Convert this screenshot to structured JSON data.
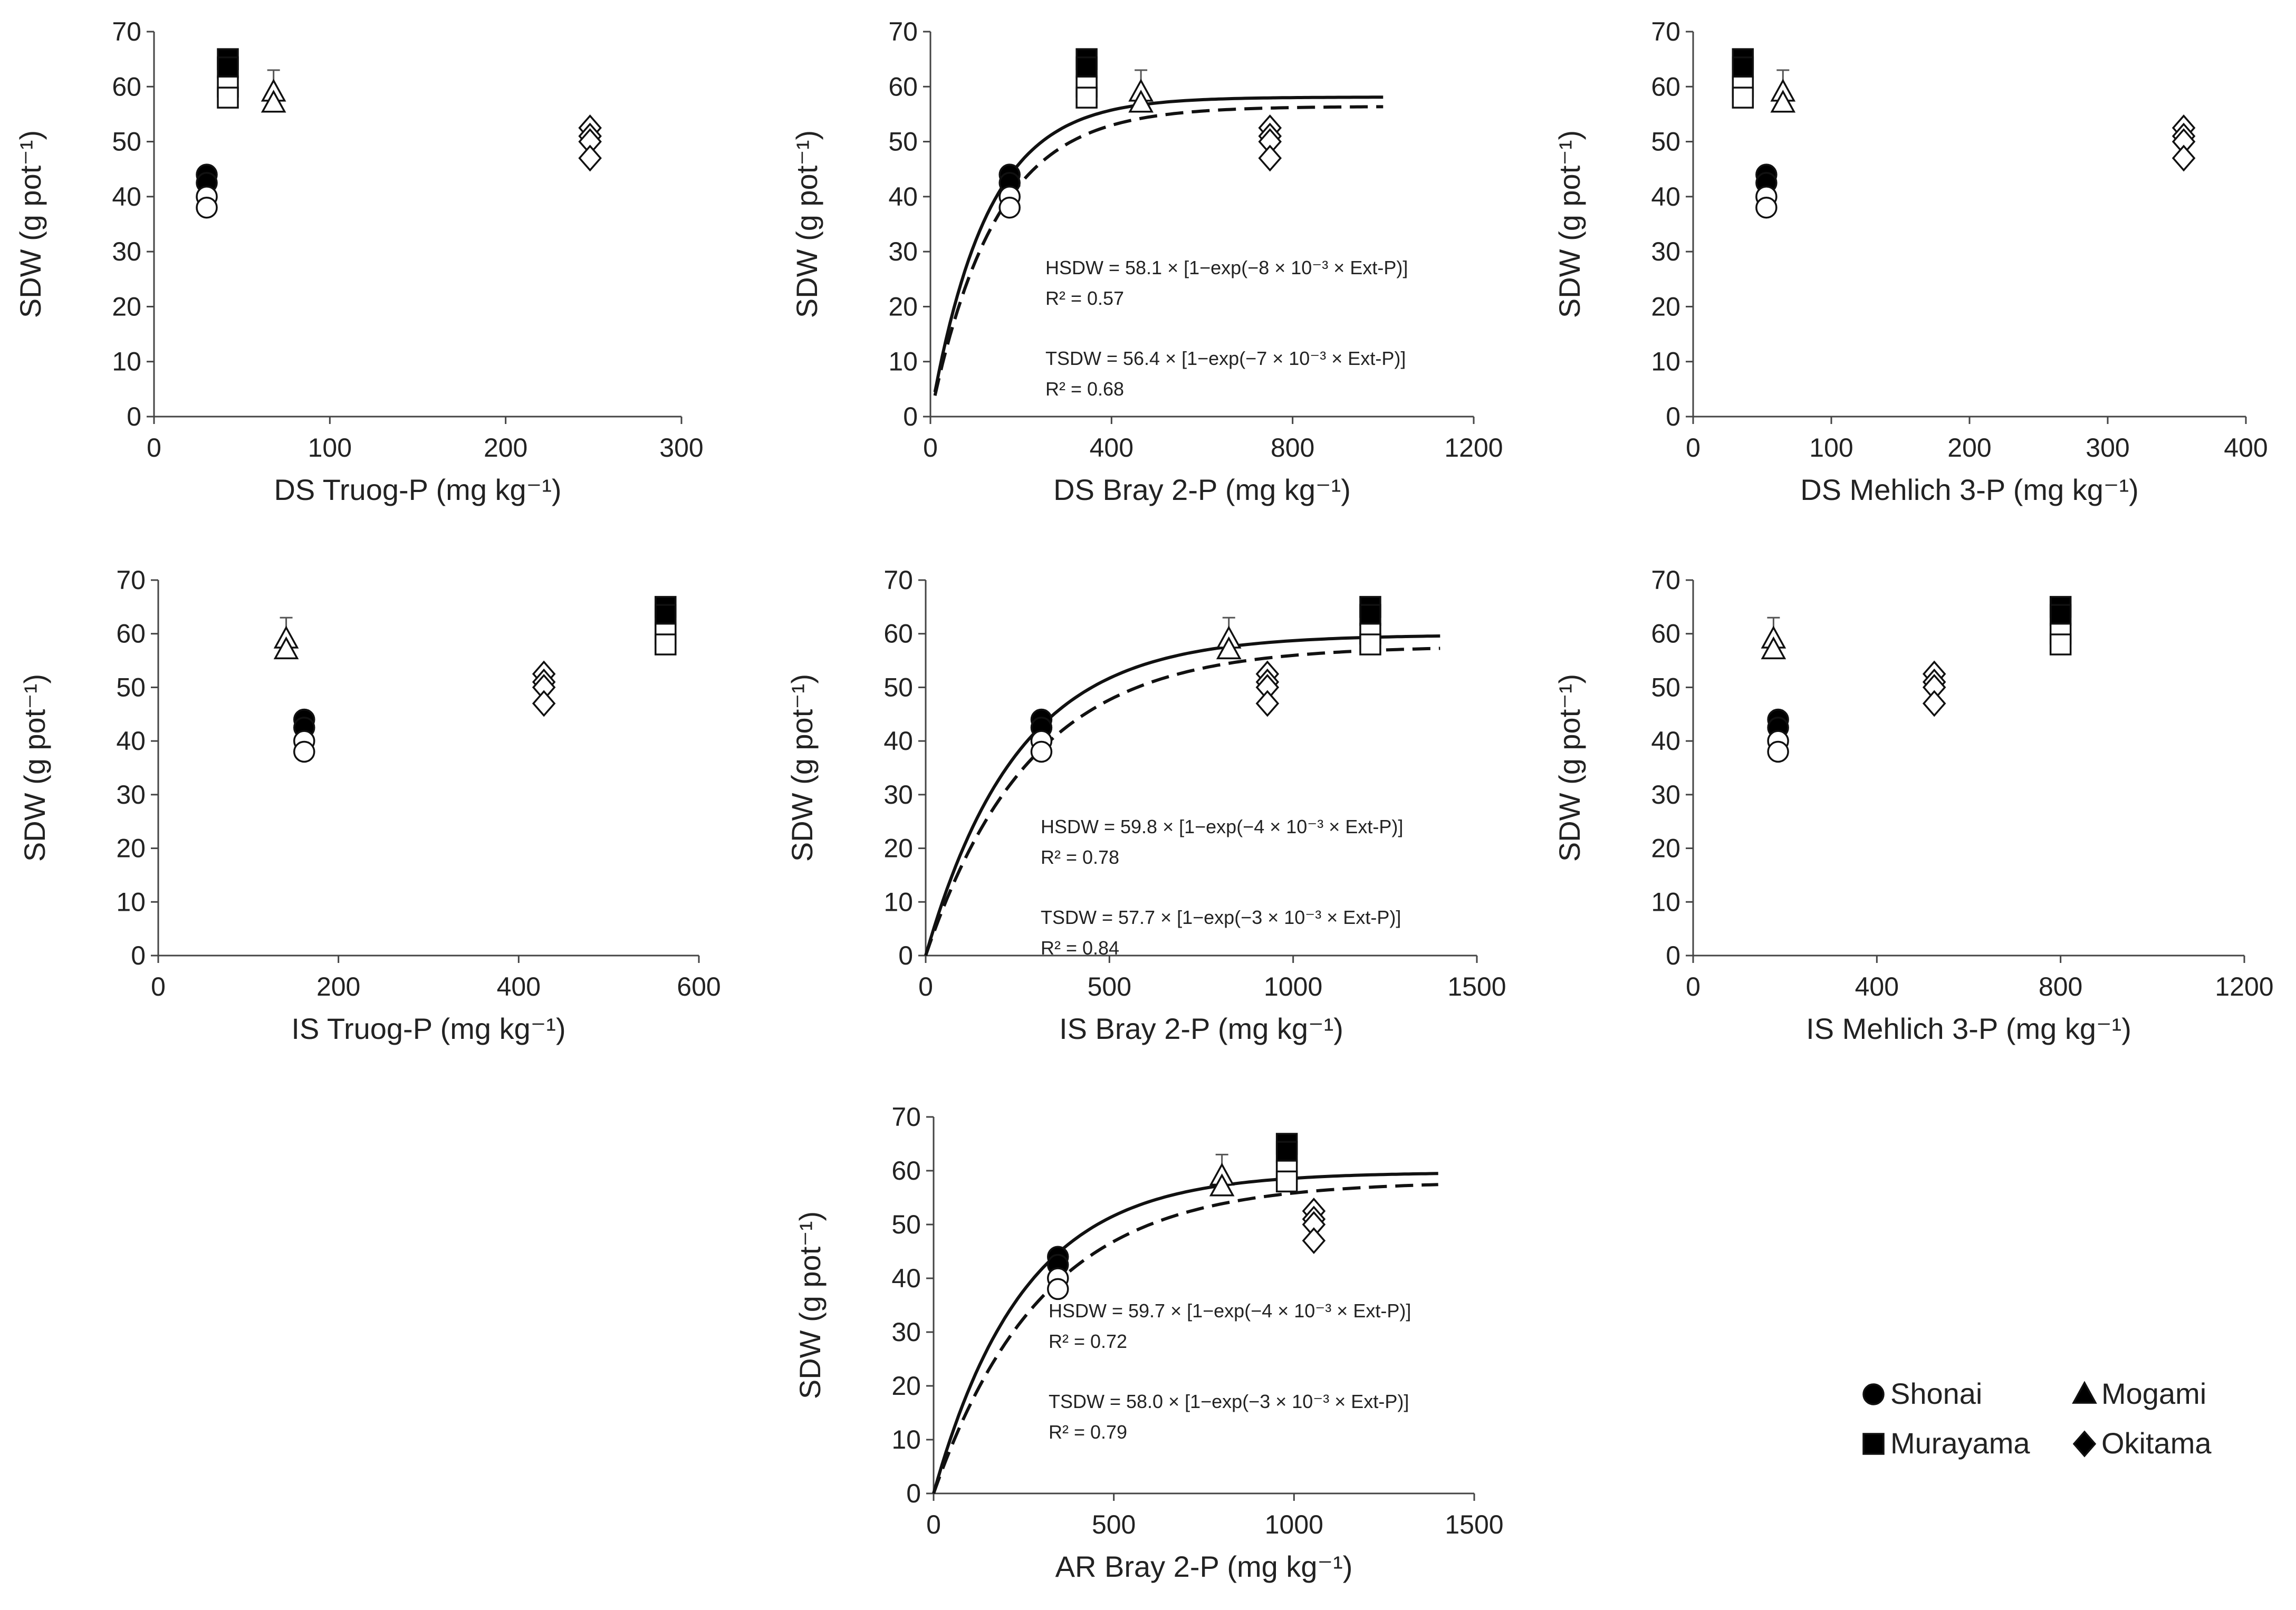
{
  "legend": [
    {
      "name": "Shonai",
      "marker": "circle"
    },
    {
      "name": "Mogami",
      "marker": "triangle"
    },
    {
      "name": "Murayama",
      "marker": "square"
    },
    {
      "name": "Okitama",
      "marker": "diamond"
    }
  ],
  "chart_data": [
    {
      "type": "scatter",
      "xlabel": "DS Truog-P (mg kg⁻¹)",
      "ylabel": "SDW (g pot⁻¹)",
      "xlim": [
        0,
        300
      ],
      "xticks": [
        0,
        100,
        200,
        300
      ],
      "ylim": [
        0,
        70
      ],
      "yticks": [
        0,
        10,
        20,
        30,
        40,
        50,
        60,
        70
      ],
      "series": [
        {
          "name": "Shonai",
          "marker": "circle",
          "points": [
            {
              "x": 30,
              "y": 44,
              "filled": true
            },
            {
              "x": 30,
              "y": 42.5,
              "filled": true
            },
            {
              "x": 30,
              "y": 40,
              "filled": false
            },
            {
              "x": 30,
              "y": 38,
              "filled": false
            }
          ]
        },
        {
          "name": "Murayama",
          "marker": "square",
          "points": [
            {
              "x": 42,
              "y": 65,
              "filled": true
            },
            {
              "x": 42,
              "y": 63.5,
              "filled": true
            },
            {
              "x": 42,
              "y": 60,
              "filled": false
            },
            {
              "x": 42,
              "y": 58,
              "filled": false
            }
          ]
        },
        {
          "name": "Mogami",
          "marker": "triangle",
          "points": [
            {
              "x": 68,
              "y": 59,
              "filled": false,
              "err": 4
            },
            {
              "x": 68,
              "y": 57,
              "filled": false
            }
          ]
        },
        {
          "name": "Okitama",
          "marker": "diamond",
          "points": [
            {
              "x": 248,
              "y": 52.5,
              "filled": false
            },
            {
              "x": 248,
              "y": 51,
              "filled": false
            },
            {
              "x": 248,
              "y": 50,
              "filled": false
            },
            {
              "x": 248,
              "y": 47,
              "filled": false
            }
          ]
        }
      ]
    },
    {
      "type": "scatter",
      "xlabel": "DS Bray 2-P (mg kg⁻¹)",
      "ylabel": "SDW (g pot⁻¹)",
      "xlim": [
        0,
        1200
      ],
      "xticks": [
        0,
        400,
        800,
        1200
      ],
      "ylim": [
        0,
        70
      ],
      "yticks": [
        0,
        10,
        20,
        30,
        40,
        50,
        60,
        70
      ],
      "series": [
        {
          "name": "Shonai",
          "marker": "circle",
          "points": [
            {
              "x": 175,
              "y": 44,
              "filled": true
            },
            {
              "x": 175,
              "y": 42.5,
              "filled": true
            },
            {
              "x": 175,
              "y": 40,
              "filled": false
            },
            {
              "x": 175,
              "y": 38,
              "filled": false
            }
          ]
        },
        {
          "name": "Murayama",
          "marker": "square",
          "points": [
            {
              "x": 345,
              "y": 65,
              "filled": true
            },
            {
              "x": 345,
              "y": 63.5,
              "filled": true
            },
            {
              "x": 345,
              "y": 60,
              "filled": false
            },
            {
              "x": 345,
              "y": 58,
              "filled": false
            }
          ]
        },
        {
          "name": "Mogami",
          "marker": "triangle",
          "points": [
            {
              "x": 465,
              "y": 59,
              "filled": false,
              "err": 4
            },
            {
              "x": 465,
              "y": 57,
              "filled": false
            }
          ]
        },
        {
          "name": "Okitama",
          "marker": "diamond",
          "points": [
            {
              "x": 750,
              "y": 52.5,
              "filled": false
            },
            {
              "x": 750,
              "y": 51,
              "filled": false
            },
            {
              "x": 750,
              "y": 50,
              "filled": false
            },
            {
              "x": 750,
              "y": 47,
              "filled": false
            }
          ]
        }
      ],
      "fits": [
        {
          "a": 58.1,
          "k": 0.008,
          "x0": 10,
          "x1": 1000,
          "style": "solid"
        },
        {
          "a": 56.4,
          "k": 0.007,
          "x0": 10,
          "x1": 1000,
          "style": "dashed"
        }
      ],
      "equations": [
        "HSDW = 58.1 × [1−exp(−8 × 10⁻³ × Ext-P)]",
        "R² = 0.57",
        "TSDW = 56.4 × [1−exp(−7 × 10⁻³ × Ext-P)]",
        "R² = 0.68"
      ]
    },
    {
      "type": "scatter",
      "xlabel": "DS Mehlich 3-P (mg kg⁻¹)",
      "ylabel": "SDW (g pot⁻¹)",
      "xlim": [
        0,
        400
      ],
      "xticks": [
        0,
        100,
        200,
        300,
        400
      ],
      "ylim": [
        0,
        70
      ],
      "yticks": [
        0,
        10,
        20,
        30,
        40,
        50,
        60,
        70
      ],
      "series": [
        {
          "name": "Murayama",
          "marker": "square",
          "points": [
            {
              "x": 36,
              "y": 65,
              "filled": true
            },
            {
              "x": 36,
              "y": 63.5,
              "filled": true
            },
            {
              "x": 36,
              "y": 60,
              "filled": false
            },
            {
              "x": 36,
              "y": 58,
              "filled": false
            }
          ]
        },
        {
          "name": "Shonai",
          "marker": "circle",
          "points": [
            {
              "x": 53,
              "y": 44,
              "filled": true
            },
            {
              "x": 53,
              "y": 42.5,
              "filled": true
            },
            {
              "x": 53,
              "y": 40,
              "filled": false
            },
            {
              "x": 53,
              "y": 38,
              "filled": false
            }
          ]
        },
        {
          "name": "Mogami",
          "marker": "triangle",
          "points": [
            {
              "x": 65,
              "y": 59,
              "filled": false,
              "err": 4
            },
            {
              "x": 65,
              "y": 57,
              "filled": false
            }
          ]
        },
        {
          "name": "Okitama",
          "marker": "diamond",
          "points": [
            {
              "x": 355,
              "y": 52.5,
              "filled": false
            },
            {
              "x": 355,
              "y": 51,
              "filled": false
            },
            {
              "x": 355,
              "y": 50,
              "filled": false
            },
            {
              "x": 355,
              "y": 47,
              "filled": false
            }
          ]
        }
      ]
    },
    {
      "type": "scatter",
      "xlabel": "IS Truog-P (mg kg⁻¹)",
      "ylabel": "SDW (g pot⁻¹)",
      "xlim": [
        0,
        600
      ],
      "xticks": [
        0,
        200,
        400,
        600
      ],
      "ylim": [
        0,
        70
      ],
      "yticks": [
        0,
        10,
        20,
        30,
        40,
        50,
        60,
        70
      ],
      "series": [
        {
          "name": "Mogami",
          "marker": "triangle",
          "points": [
            {
              "x": 142,
              "y": 59,
              "filled": false,
              "err": 4
            },
            {
              "x": 142,
              "y": 57,
              "filled": false
            }
          ]
        },
        {
          "name": "Shonai",
          "marker": "circle",
          "points": [
            {
              "x": 162,
              "y": 44,
              "filled": true
            },
            {
              "x": 162,
              "y": 42.5,
              "filled": true
            },
            {
              "x": 162,
              "y": 40,
              "filled": false
            },
            {
              "x": 162,
              "y": 38,
              "filled": false
            }
          ]
        },
        {
          "name": "Okitama",
          "marker": "diamond",
          "points": [
            {
              "x": 428,
              "y": 52.5,
              "filled": false
            },
            {
              "x": 428,
              "y": 51,
              "filled": false
            },
            {
              "x": 428,
              "y": 50,
              "filled": false
            },
            {
              "x": 428,
              "y": 47,
              "filled": false
            }
          ]
        },
        {
          "name": "Murayama",
          "marker": "square",
          "points": [
            {
              "x": 563,
              "y": 65,
              "filled": true
            },
            {
              "x": 563,
              "y": 63.5,
              "filled": true
            },
            {
              "x": 563,
              "y": 60,
              "filled": false
            },
            {
              "x": 563,
              "y": 58,
              "filled": false
            }
          ]
        }
      ]
    },
    {
      "type": "scatter",
      "xlabel": "IS Bray 2-P (mg kg⁻¹)",
      "ylabel": "SDW (g pot⁻¹)",
      "xlim": [
        0,
        1500
      ],
      "xticks": [
        0,
        500,
        1000,
        1500
      ],
      "ylim": [
        0,
        70
      ],
      "yticks": [
        0,
        10,
        20,
        30,
        40,
        50,
        60,
        70
      ],
      "series": [
        {
          "name": "Shonai",
          "marker": "circle",
          "points": [
            {
              "x": 315,
              "y": 44,
              "filled": true
            },
            {
              "x": 315,
              "y": 42.5,
              "filled": true
            },
            {
              "x": 315,
              "y": 40,
              "filled": false
            },
            {
              "x": 315,
              "y": 38,
              "filled": false
            }
          ]
        },
        {
          "name": "Mogami",
          "marker": "triangle",
          "points": [
            {
              "x": 825,
              "y": 59,
              "filled": false,
              "err": 4
            },
            {
              "x": 825,
              "y": 57,
              "filled": false
            }
          ]
        },
        {
          "name": "Okitama",
          "marker": "diamond",
          "points": [
            {
              "x": 930,
              "y": 52.5,
              "filled": false
            },
            {
              "x": 930,
              "y": 51,
              "filled": false
            },
            {
              "x": 930,
              "y": 50,
              "filled": false
            },
            {
              "x": 930,
              "y": 47,
              "filled": false
            }
          ]
        },
        {
          "name": "Murayama",
          "marker": "square",
          "points": [
            {
              "x": 1210,
              "y": 65,
              "filled": true
            },
            {
              "x": 1210,
              "y": 63.5,
              "filled": true
            },
            {
              "x": 1210,
              "y": 60,
              "filled": false
            },
            {
              "x": 1210,
              "y": 58,
              "filled": false
            }
          ]
        }
      ],
      "fits": [
        {
          "a": 59.8,
          "k": 0.004,
          "x0": 0,
          "x1": 1400,
          "style": "solid"
        },
        {
          "a": 57.7,
          "k": 0.0035,
          "x0": 0,
          "x1": 1400,
          "style": "dashed"
        }
      ],
      "equations": [
        "HSDW = 59.8 × [1−exp(−4 × 10⁻³ × Ext-P)]",
        "R² = 0.78",
        "TSDW = 57.7 × [1−exp(−3 × 10⁻³ × Ext-P)]",
        "R² = 0.84"
      ]
    },
    {
      "type": "scatter",
      "xlabel": "IS Mehlich 3-P (mg kg⁻¹)",
      "ylabel": "SDW (g pot⁻¹)",
      "xlim": [
        0,
        1200
      ],
      "xticks": [
        0,
        400,
        800,
        1200
      ],
      "ylim": [
        0,
        70
      ],
      "yticks": [
        0,
        10,
        20,
        30,
        40,
        50,
        60,
        70
      ],
      "series": [
        {
          "name": "Mogami",
          "marker": "triangle",
          "points": [
            {
              "x": 175,
              "y": 59,
              "filled": false,
              "err": 4
            },
            {
              "x": 175,
              "y": 57,
              "filled": false
            }
          ]
        },
        {
          "name": "Shonai",
          "marker": "circle",
          "points": [
            {
              "x": 185,
              "y": 44,
              "filled": true
            },
            {
              "x": 185,
              "y": 42.5,
              "filled": true
            },
            {
              "x": 185,
              "y": 40,
              "filled": false
            },
            {
              "x": 185,
              "y": 38,
              "filled": false
            }
          ]
        },
        {
          "name": "Okitama",
          "marker": "diamond",
          "points": [
            {
              "x": 525,
              "y": 52.5,
              "filled": false
            },
            {
              "x": 525,
              "y": 51,
              "filled": false
            },
            {
              "x": 525,
              "y": 50,
              "filled": false
            },
            {
              "x": 525,
              "y": 47,
              "filled": false
            }
          ]
        },
        {
          "name": "Murayama",
          "marker": "square",
          "points": [
            {
              "x": 800,
              "y": 65,
              "filled": true
            },
            {
              "x": 800,
              "y": 63.5,
              "filled": true
            },
            {
              "x": 800,
              "y": 60,
              "filled": false
            },
            {
              "x": 800,
              "y": 58,
              "filled": false
            }
          ]
        }
      ]
    },
    {
      "type": "scatter",
      "xlabel": "AR Bray 2-P (mg kg⁻¹)",
      "ylabel": "SDW (g pot⁻¹)",
      "xlim": [
        0,
        1500
      ],
      "xticks": [
        0,
        500,
        1000,
        1500
      ],
      "ylim": [
        0,
        70
      ],
      "yticks": [
        0,
        10,
        20,
        30,
        40,
        50,
        60,
        70
      ],
      "series": [
        {
          "name": "Shonai",
          "marker": "circle",
          "points": [
            {
              "x": 345,
              "y": 44,
              "filled": true
            },
            {
              "x": 345,
              "y": 42.5,
              "filled": true
            },
            {
              "x": 345,
              "y": 40,
              "filled": false
            },
            {
              "x": 345,
              "y": 38,
              "filled": false
            }
          ]
        },
        {
          "name": "Mogami",
          "marker": "triangle",
          "points": [
            {
              "x": 800,
              "y": 59,
              "filled": false,
              "err": 4
            },
            {
              "x": 800,
              "y": 57,
              "filled": false
            }
          ]
        },
        {
          "name": "Murayama",
          "marker": "square",
          "points": [
            {
              "x": 980,
              "y": 65,
              "filled": true
            },
            {
              "x": 980,
              "y": 63.5,
              "filled": true
            },
            {
              "x": 980,
              "y": 60,
              "filled": false
            },
            {
              "x": 980,
              "y": 58,
              "filled": false
            }
          ]
        },
        {
          "name": "Okitama",
          "marker": "diamond",
          "points": [
            {
              "x": 1055,
              "y": 52.5,
              "filled": false
            },
            {
              "x": 1055,
              "y": 51,
              "filled": false
            },
            {
              "x": 1055,
              "y": 50,
              "filled": false
            },
            {
              "x": 1055,
              "y": 47,
              "filled": false
            }
          ]
        }
      ],
      "fits": [
        {
          "a": 59.7,
          "k": 0.004,
          "x0": 0,
          "x1": 1400,
          "style": "solid"
        },
        {
          "a": 58.0,
          "k": 0.0033,
          "x0": 0,
          "x1": 1400,
          "style": "dashed"
        }
      ],
      "equations": [
        "HSDW = 59.7 × [1−exp(−4 × 10⁻³ × Ext-P)]",
        "R² = 0.72",
        "TSDW = 58.0 × [1−exp(−3 × 10⁻³ × Ext-P)]",
        "R² = 0.79"
      ]
    }
  ]
}
